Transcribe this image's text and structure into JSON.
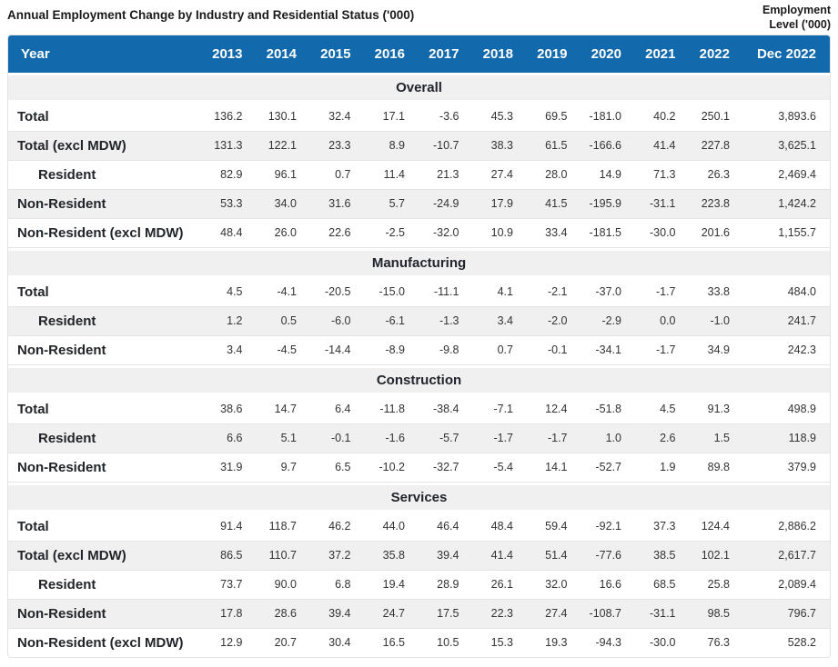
{
  "title": "Annual Employment Change by Industry and Residential Status ('000)",
  "corner_note": {
    "line1": "Employment",
    "line2": "Level ('000)"
  },
  "colors": {
    "header_bg": "#1269ab",
    "header_text": "#ffffff",
    "section_bg": "#f0f0f1",
    "stripe_bg": "#f0f0f0",
    "row_border": "#e4e4e4",
    "label_text": "#212529",
    "value_text": "#333333",
    "title_text": "#1a1a1a"
  },
  "chart_data": {
    "type": "table",
    "title": "Annual Employment Change by Industry and Residential Status ('000)",
    "unit_note": "Employment Level ('000)",
    "columns": [
      "Year",
      "2013",
      "2014",
      "2015",
      "2016",
      "2017",
      "2018",
      "2019",
      "2020",
      "2021",
      "2022",
      "Dec 2022"
    ],
    "sections": [
      {
        "name": "Overall",
        "rows": [
          {
            "label": "Total",
            "indent": false,
            "values": [
              "136.2",
              "130.1",
              "32.4",
              "17.1",
              "-3.6",
              "45.3",
              "69.5",
              "-181.0",
              "40.2",
              "250.1",
              "3,893.6"
            ]
          },
          {
            "label": "Total (excl MDW)",
            "indent": false,
            "values": [
              "131.3",
              "122.1",
              "23.3",
              "8.9",
              "-10.7",
              "38.3",
              "61.5",
              "-166.6",
              "41.4",
              "227.8",
              "3,625.1"
            ]
          },
          {
            "label": "Resident",
            "indent": true,
            "values": [
              "82.9",
              "96.1",
              "0.7",
              "11.4",
              "21.3",
              "27.4",
              "28.0",
              "14.9",
              "71.3",
              "26.3",
              "2,469.4"
            ]
          },
          {
            "label": "Non-Resident",
            "indent": false,
            "values": [
              "53.3",
              "34.0",
              "31.6",
              "5.7",
              "-24.9",
              "17.9",
              "41.5",
              "-195.9",
              "-31.1",
              "223.8",
              "1,424.2"
            ]
          },
          {
            "label": "Non-Resident (excl MDW)",
            "indent": false,
            "values": [
              "48.4",
              "26.0",
              "22.6",
              "-2.5",
              "-32.0",
              "10.9",
              "33.4",
              "-181.5",
              "-30.0",
              "201.6",
              "1,155.7"
            ]
          }
        ]
      },
      {
        "name": "Manufacturing",
        "rows": [
          {
            "label": "Total",
            "indent": false,
            "values": [
              "4.5",
              "-4.1",
              "-20.5",
              "-15.0",
              "-11.1",
              "4.1",
              "-2.1",
              "-37.0",
              "-1.7",
              "33.8",
              "484.0"
            ]
          },
          {
            "label": "Resident",
            "indent": true,
            "values": [
              "1.2",
              "0.5",
              "-6.0",
              "-6.1",
              "-1.3",
              "3.4",
              "-2.0",
              "-2.9",
              "0.0",
              "-1.0",
              "241.7"
            ]
          },
          {
            "label": "Non-Resident",
            "indent": false,
            "values": [
              "3.4",
              "-4.5",
              "-14.4",
              "-8.9",
              "-9.8",
              "0.7",
              "-0.1",
              "-34.1",
              "-1.7",
              "34.9",
              "242.3"
            ]
          }
        ]
      },
      {
        "name": "Construction",
        "rows": [
          {
            "label": "Total",
            "indent": false,
            "values": [
              "38.6",
              "14.7",
              "6.4",
              "-11.8",
              "-38.4",
              "-7.1",
              "12.4",
              "-51.8",
              "4.5",
              "91.3",
              "498.9"
            ]
          },
          {
            "label": "Resident",
            "indent": true,
            "values": [
              "6.6",
              "5.1",
              "-0.1",
              "-1.6",
              "-5.7",
              "-1.7",
              "-1.7",
              "1.0",
              "2.6",
              "1.5",
              "118.9"
            ]
          },
          {
            "label": "Non-Resident",
            "indent": false,
            "values": [
              "31.9",
              "9.7",
              "6.5",
              "-10.2",
              "-32.7",
              "-5.4",
              "14.1",
              "-52.7",
              "1.9",
              "89.8",
              "379.9"
            ]
          }
        ]
      },
      {
        "name": "Services",
        "rows": [
          {
            "label": "Total",
            "indent": false,
            "values": [
              "91.4",
              "118.7",
              "46.2",
              "44.0",
              "46.4",
              "48.4",
              "59.4",
              "-92.1",
              "37.3",
              "124.4",
              "2,886.2"
            ]
          },
          {
            "label": "Total (excl MDW)",
            "indent": false,
            "values": [
              "86.5",
              "110.7",
              "37.2",
              "35.8",
              "39.4",
              "41.4",
              "51.4",
              "-77.6",
              "38.5",
              "102.1",
              "2,617.7"
            ]
          },
          {
            "label": "Resident",
            "indent": true,
            "values": [
              "73.7",
              "90.0",
              "6.8",
              "19.4",
              "28.9",
              "26.1",
              "32.0",
              "16.6",
              "68.5",
              "25.8",
              "2,089.4"
            ]
          },
          {
            "label": "Non-Resident",
            "indent": false,
            "values": [
              "17.8",
              "28.6",
              "39.4",
              "24.7",
              "17.5",
              "22.3",
              "27.4",
              "-108.7",
              "-31.1",
              "98.5",
              "796.7"
            ]
          },
          {
            "label": "Non-Resident (excl MDW)",
            "indent": false,
            "values": [
              "12.9",
              "20.7",
              "30.4",
              "16.5",
              "10.5",
              "15.3",
              "19.3",
              "-94.3",
              "-30.0",
              "76.3",
              "528.2"
            ]
          }
        ]
      }
    ]
  }
}
